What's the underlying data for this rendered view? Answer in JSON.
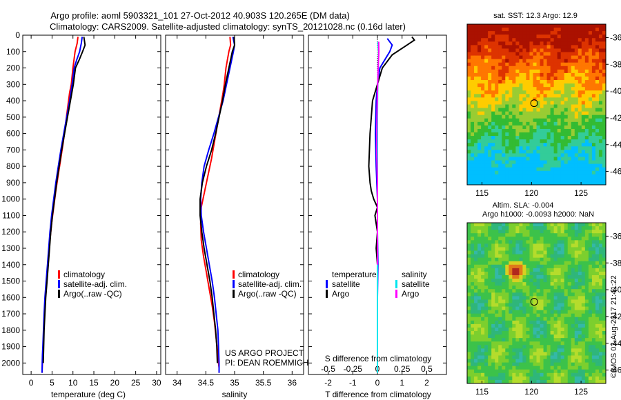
{
  "title": {
    "line1": "Argo profile: aoml 5903321_101 27-Oct-2012 40.903S 120.265E (DM data)",
    "line2": "Climatology: CARS2009. Satellite-adjusted climatology: synTS_20121028.nc (0.16d later)"
  },
  "watermark": "©IMOS 03-Aug-2017 21:41:22",
  "project_note": [
    "US ARGO PROJECT",
    "PI: DEAN ROEMMICH"
  ],
  "colors": {
    "clim": "#ff0000",
    "sat": "#0000ff",
    "argo": "#000000",
    "sat_s": "#00e5ee",
    "argo_s": "#ff00ff",
    "map_marker": "#000000"
  },
  "chart_data": [
    {
      "type": "line",
      "id": "temperature",
      "xlabel": "temperature (deg C)",
      "ylabel": "",
      "xlim": [
        -2,
        31
      ],
      "ylim": [
        2070,
        0
      ],
      "xticks": [
        0,
        5,
        10,
        15,
        20,
        25,
        30
      ],
      "yticks": [
        0,
        100,
        200,
        300,
        400,
        500,
        600,
        700,
        800,
        900,
        1000,
        1100,
        1200,
        1300,
        1400,
        1500,
        1600,
        1700,
        1800,
        1900,
        2000
      ],
      "legend": [
        "climatology",
        "satellite-adj. clim.",
        "Argo(..raw -QC)"
      ],
      "legend_position": "lower-middle",
      "series": [
        {
          "name": "climatology",
          "color": "#ff0000",
          "x": [
            11.2,
            11.0,
            10.5,
            10.0,
            9.6,
            9.2,
            8.7,
            8.2,
            7.7,
            7.1,
            6.5,
            5.9,
            5.4,
            4.9,
            4.5,
            4.2,
            3.9,
            3.6,
            3.3,
            3.1,
            2.95,
            2.8,
            2.7,
            2.65,
            2.6
          ],
          "y": [
            10,
            50,
            100,
            200,
            300,
            350,
            450,
            550,
            650,
            750,
            850,
            950,
            1050,
            1150,
            1250,
            1350,
            1450,
            1550,
            1650,
            1750,
            1850,
            1950,
            2000,
            2030,
            2060
          ]
        },
        {
          "name": "satellite-adj. clim.",
          "color": "#0000ff",
          "x": [
            12.2,
            12.0,
            11.6,
            10.9,
            10.3,
            9.8,
            9.2,
            8.5,
            7.8,
            7.1,
            6.5,
            5.9,
            5.4,
            4.9,
            4.5,
            4.2,
            3.9,
            3.6,
            3.3,
            3.1,
            2.95,
            2.8,
            2.7,
            2.65,
            2.6
          ],
          "y": [
            10,
            50,
            100,
            150,
            200,
            300,
            400,
            500,
            600,
            700,
            800,
            900,
            1000,
            1100,
            1200,
            1300,
            1400,
            1500,
            1600,
            1700,
            1800,
            1900,
            1950,
            2000,
            2060
          ]
        },
        {
          "name": "Argo(..raw -QC)",
          "color": "#000000",
          "x": [
            12.6,
            12.9,
            12.3,
            11.5,
            10.6,
            10.1,
            9.4,
            8.7,
            8.0,
            7.3,
            6.7,
            6.1,
            5.6,
            5.1,
            4.7,
            4.4,
            4.1,
            3.8,
            3.5,
            3.3,
            3.1,
            3.0,
            2.95,
            2.9
          ],
          "y": [
            10,
            60,
            100,
            150,
            200,
            300,
            400,
            500,
            600,
            700,
            800,
            900,
            1000,
            1100,
            1200,
            1300,
            1400,
            1500,
            1600,
            1700,
            1800,
            1900,
            1950,
            2000
          ]
        }
      ]
    },
    {
      "type": "line",
      "id": "salinity",
      "xlabel": "salinity",
      "xlim": [
        33.8,
        36.2
      ],
      "ylim": [
        2070,
        0
      ],
      "xticks": [
        34,
        34.5,
        35,
        35.5,
        36
      ],
      "legend": [
        "climatology",
        "satellite-adj. clim.",
        "Argo(..raw -QC)"
      ],
      "legend_position": "lower-middle",
      "series": [
        {
          "name": "climatology",
          "color": "#ff0000",
          "x": [
            34.92,
            34.93,
            34.9,
            34.85,
            34.82,
            34.8,
            34.75,
            34.7,
            34.65,
            34.6,
            34.54,
            34.48,
            34.42,
            34.41,
            34.42,
            34.46,
            34.51,
            34.56,
            34.61,
            34.65,
            34.68,
            34.71,
            34.72,
            34.73,
            34.73
          ],
          "y": [
            10,
            60,
            100,
            200,
            300,
            350,
            450,
            550,
            650,
            750,
            850,
            950,
            1050,
            1150,
            1250,
            1350,
            1450,
            1550,
            1650,
            1750,
            1850,
            1950,
            2000,
            2030,
            2060
          ]
        },
        {
          "name": "satellite-adj. clim.",
          "color": "#0000ff",
          "x": [
            34.97,
            35.0,
            34.98,
            34.92,
            34.86,
            34.8,
            34.72,
            34.64,
            34.55,
            34.47,
            34.43,
            34.41,
            34.42,
            34.46,
            34.51,
            34.56,
            34.61,
            34.65,
            34.68,
            34.71,
            34.72,
            34.73,
            34.73
          ],
          "y": [
            10,
            60,
            100,
            200,
            300,
            400,
            500,
            600,
            700,
            800,
            900,
            1000,
            1100,
            1200,
            1300,
            1400,
            1500,
            1600,
            1700,
            1800,
            1900,
            2000,
            2060
          ]
        },
        {
          "name": "Argo(..raw -QC)",
          "color": "#000000",
          "x": [
            34.99,
            35.0,
            34.96,
            34.9,
            34.84,
            34.79,
            34.73,
            34.67,
            34.6,
            34.51,
            34.44,
            34.4,
            34.4,
            34.43,
            34.47,
            34.52,
            34.57,
            34.61,
            34.64,
            34.67,
            34.69,
            34.7
          ],
          "y": [
            10,
            60,
            100,
            200,
            300,
            400,
            500,
            600,
            700,
            800,
            900,
            1000,
            1100,
            1200,
            1300,
            1400,
            1500,
            1600,
            1700,
            1800,
            1900,
            2000
          ]
        }
      ]
    },
    {
      "type": "line",
      "id": "difference",
      "xlabel": "T difference from climatology",
      "xlabel_top": "S difference from climatology",
      "xlim": [
        -2.8,
        2.8
      ],
      "ylim": [
        2070,
        0
      ],
      "xticks": [
        -2,
        -1,
        0,
        1,
        2
      ],
      "xticks_s": [
        -0.5,
        -0.25,
        0,
        0.25,
        0.5
      ],
      "xtick_labels_s": [
        "-0.5",
        "-0.25",
        "0",
        "0.25",
        "0.5"
      ],
      "legend_t": {
        "title": "temperature",
        "items": [
          "satellite",
          "Argo"
        ]
      },
      "legend_s": {
        "title": "salinity",
        "items": [
          "satellite",
          "Argo"
        ]
      },
      "series": [
        {
          "name": "temperature satellite",
          "color": "#0000ff",
          "x": [
            0.4,
            0.6,
            0.5,
            0.3,
            0.1,
            0.0,
            -0.05,
            -0.08,
            -0.05,
            0.0,
            0.0,
            0.02,
            0.0,
            0.0,
            0.0
          ],
          "y": [
            20,
            60,
            100,
            150,
            200,
            300,
            400,
            600,
            800,
            1000,
            1200,
            1400,
            1600,
            1800,
            1900
          ]
        },
        {
          "name": "temperature Argo",
          "color": "#000000",
          "x": [
            1.4,
            1.5,
            1.2,
            0.9,
            0.6,
            0.2,
            0.0,
            -0.2,
            -0.3,
            -0.35,
            -0.3,
            -0.25,
            -0.15,
            0.0,
            -0.1,
            0.0,
            -0.05,
            0.0,
            0.0,
            0.0
          ],
          "y": [
            10,
            30,
            60,
            90,
            120,
            200,
            300,
            400,
            600,
            800,
            900,
            950,
            1000,
            1050,
            1100,
            1200,
            1300,
            1400,
            1600,
            1900
          ]
        },
        {
          "name": "salinity satellite",
          "color": "#00e5ee",
          "x": [
            0.02,
            0.05,
            0.03,
            0.01,
            0.0,
            0.0,
            0.0,
            0.0,
            0.0,
            0.0,
            0.0
          ],
          "y": [
            40,
            100,
            200,
            300,
            500,
            800,
            1100,
            1400,
            1700,
            2000,
            2060
          ]
        },
        {
          "name": "salinity Argo",
          "color": "#ff00ff",
          "x": [
            0.05,
            0.06,
            0.03,
            0.0,
            -0.02,
            -0.03,
            0.0,
            0.0,
            0.0,
            0.0
          ],
          "y": [
            40,
            100,
            200,
            350,
            500,
            700,
            900,
            1000,
            1200,
            1400
          ]
        }
      ]
    },
    {
      "type": "heatmap",
      "id": "sst-map",
      "title": "sat. SST: 12.3  Argo: 12.9",
      "xlim": [
        113.5,
        127.5
      ],
      "ylim": [
        -47,
        -35
      ],
      "xticks": [
        115,
        120,
        125
      ],
      "yticks": [
        -36,
        -38,
        -40,
        -42,
        -44,
        -46
      ],
      "marker": {
        "lon": 120.265,
        "lat": -40.903
      },
      "colormap": [
        "#00bfff",
        "#33cc99",
        "#33bb33",
        "#99cc33",
        "#ffcc00",
        "#ff7700",
        "#dd3300",
        "#aa1100"
      ]
    },
    {
      "type": "heatmap",
      "id": "sla-map",
      "title": "Altim. SLA: -0.004",
      "subtitle": "Argo h1000: -0.0093 h2000: NaN",
      "xlim": [
        113.5,
        127.5
      ],
      "ylim": [
        -47,
        -35
      ],
      "xticks": [
        115,
        120,
        125
      ],
      "yticks": [
        -36,
        -38,
        -40,
        -42,
        -44,
        -46
      ],
      "marker": {
        "lon": 120.265,
        "lat": -40.903
      },
      "anomaly": {
        "lon": 118.4,
        "lat": -38.6
      }
    }
  ]
}
